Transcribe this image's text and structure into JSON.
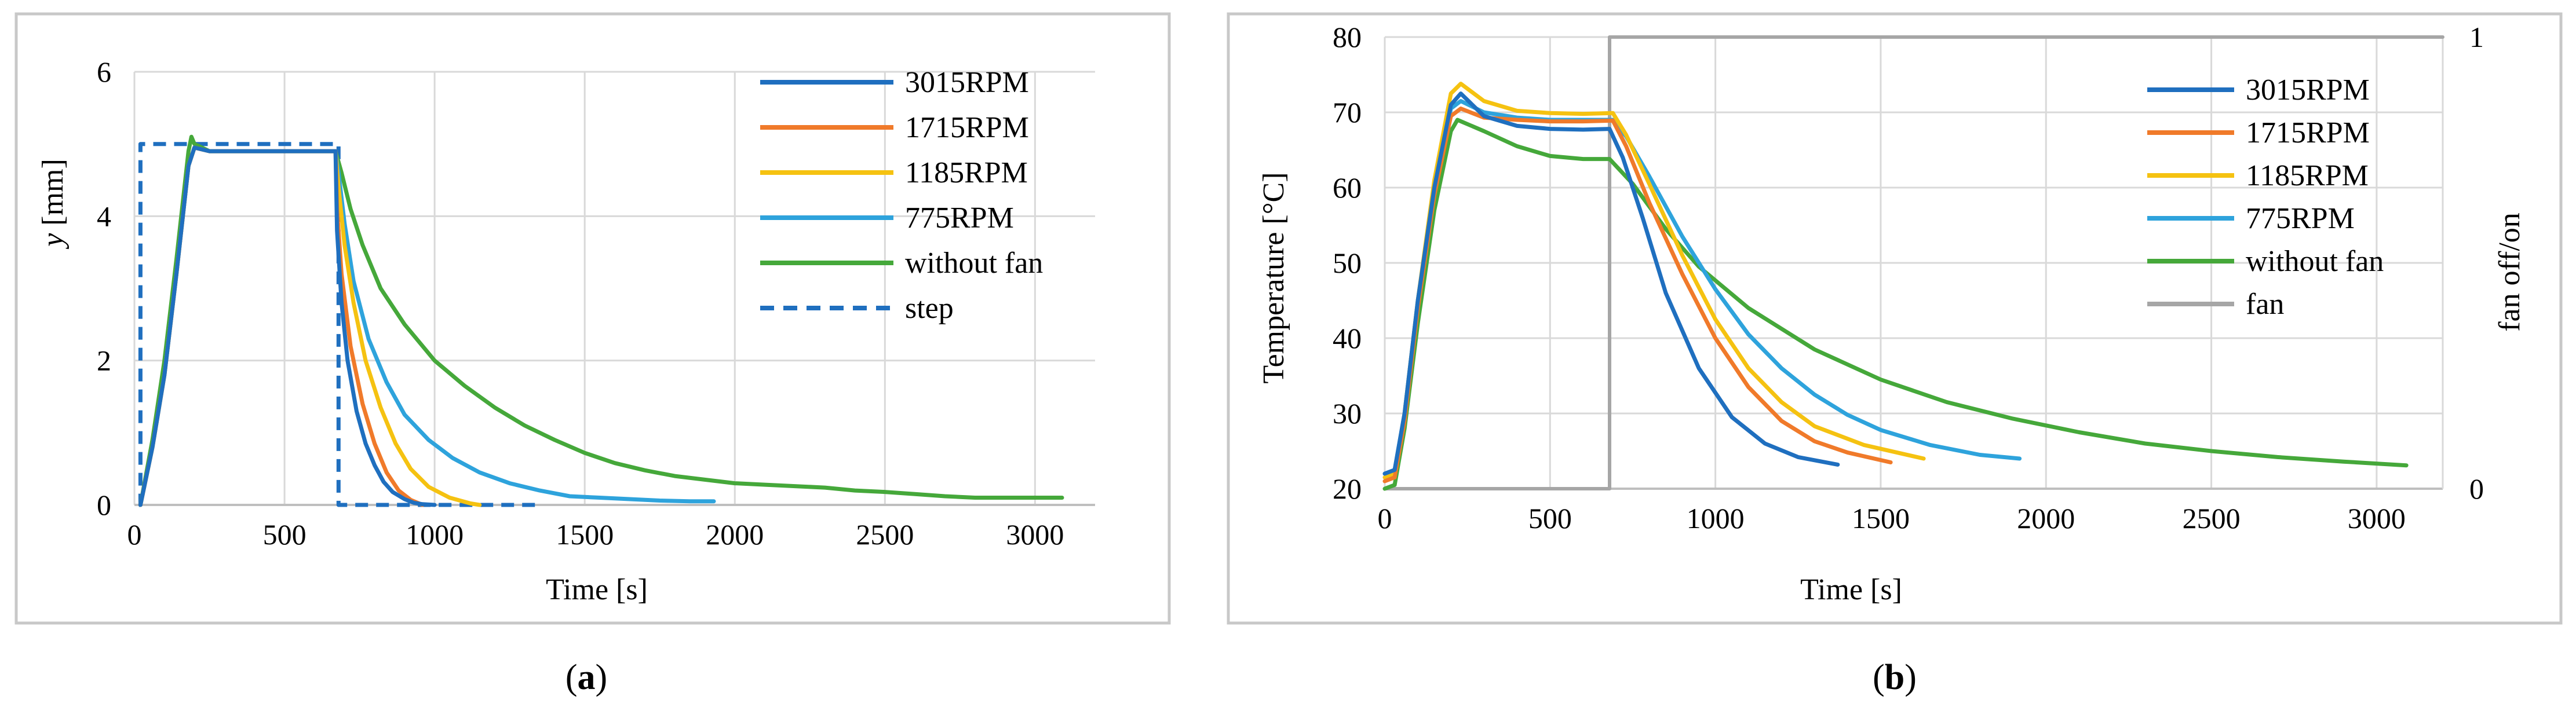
{
  "colors": {
    "c3015": "#1f6fbf",
    "c1715": "#f07a2a",
    "c1185": "#f5c211",
    "c775": "#2ea3dc",
    "without_fan": "#45a83a",
    "step": "#1f6fbf",
    "fan": "#a6a6a6",
    "grid": "#d9d9d9",
    "frame": "#c8c8c8"
  },
  "chart_data": [
    {
      "id": "a",
      "type": "line",
      "caption_letter": "a",
      "xlabel": "Time [s]",
      "ylabel_italic": "y",
      "ylabel_rest": " [mm]",
      "xlim": [
        0,
        3200
      ],
      "ylim": [
        0,
        6
      ],
      "xticks": [
        0,
        500,
        1000,
        1500,
        2000,
        2500,
        3000
      ],
      "yticks": [
        0,
        2,
        4,
        6
      ],
      "grid": true,
      "legend": "top-right",
      "series": [
        {
          "name": "3015RPM",
          "color_key": "c3015",
          "dash": false,
          "x": [
            20,
            60,
            100,
            140,
            180,
            200,
            250,
            400,
            550,
            670,
            675,
            690,
            710,
            740,
            770,
            800,
            830,
            860,
            900,
            930,
            960,
            1000
          ],
          "y": [
            0,
            0.8,
            1.8,
            3.2,
            4.7,
            4.95,
            4.9,
            4.9,
            4.9,
            4.9,
            3.8,
            2.8,
            2.0,
            1.3,
            0.85,
            0.55,
            0.32,
            0.18,
            0.08,
            0.03,
            0.01,
            0
          ]
        },
        {
          "name": "1715RPM",
          "color_key": "c1715",
          "dash": false,
          "x": [
            20,
            60,
            100,
            140,
            180,
            200,
            250,
            400,
            550,
            670,
            675,
            690,
            720,
            760,
            800,
            840,
            880,
            920,
            960
          ],
          "y": [
            0,
            0.8,
            1.8,
            3.2,
            4.7,
            4.95,
            4.9,
            4.9,
            4.9,
            4.9,
            4.1,
            3.2,
            2.2,
            1.4,
            0.85,
            0.45,
            0.2,
            0.07,
            0
          ]
        },
        {
          "name": "1185RPM",
          "color_key": "c1185",
          "dash": false,
          "x": [
            20,
            60,
            100,
            140,
            180,
            200,
            250,
            400,
            550,
            670,
            680,
            700,
            730,
            770,
            820,
            870,
            920,
            980,
            1050,
            1120,
            1150
          ],
          "y": [
            0,
            0.8,
            1.8,
            3.2,
            4.7,
            4.95,
            4.9,
            4.9,
            4.9,
            4.9,
            4.4,
            3.6,
            2.8,
            2.0,
            1.35,
            0.85,
            0.5,
            0.25,
            0.1,
            0.02,
            0
          ]
        },
        {
          "name": "775RPM",
          "color_key": "c775",
          "dash": false,
          "x": [
            20,
            60,
            100,
            140,
            180,
            200,
            250,
            400,
            550,
            670,
            680,
            700,
            730,
            780,
            840,
            900,
            980,
            1060,
            1150,
            1250,
            1350,
            1450,
            1550,
            1650,
            1750,
            1850,
            1930
          ],
          "y": [
            0,
            0.8,
            1.8,
            3.2,
            4.7,
            4.95,
            4.9,
            4.9,
            4.9,
            4.9,
            4.6,
            3.9,
            3.1,
            2.3,
            1.7,
            1.25,
            0.9,
            0.65,
            0.45,
            0.3,
            0.2,
            0.12,
            0.1,
            0.08,
            0.06,
            0.05,
            0.05
          ]
        },
        {
          "name": "without fan",
          "color_key": "without_fan",
          "dash": false,
          "x": [
            20,
            60,
            100,
            140,
            180,
            190,
            200,
            250,
            400,
            550,
            670,
            690,
            720,
            760,
            820,
            900,
            1000,
            1100,
            1200,
            1300,
            1400,
            1500,
            1600,
            1700,
            1800,
            1900,
            2000,
            2100,
            2200,
            2300,
            2400,
            2500,
            2600,
            2700,
            2800,
            2900,
            3000,
            3090
          ],
          "y": [
            0,
            0.9,
            2.0,
            3.4,
            4.9,
            5.1,
            5.0,
            4.9,
            4.9,
            4.9,
            4.9,
            4.6,
            4.1,
            3.6,
            3.0,
            2.5,
            2.0,
            1.65,
            1.35,
            1.1,
            0.9,
            0.72,
            0.58,
            0.48,
            0.4,
            0.35,
            0.3,
            0.28,
            0.26,
            0.24,
            0.2,
            0.18,
            0.15,
            0.12,
            0.1,
            0.1,
            0.1,
            0.1
          ]
        },
        {
          "name": "step",
          "color_key": "step",
          "dash": true,
          "x": [
            15,
            20,
            20,
            680,
            680,
            1350
          ],
          "y": [
            0,
            0,
            5,
            5,
            0,
            0
          ]
        }
      ]
    },
    {
      "id": "b",
      "type": "line",
      "caption_letter": "b",
      "xlabel": "Time [s]",
      "ylabel": "Temperature [°C]",
      "y2label": "fan off/on",
      "xlim": [
        0,
        3200
      ],
      "ylim": [
        20,
        80
      ],
      "y2lim": [
        0,
        1
      ],
      "xticks": [
        0,
        500,
        1000,
        1500,
        2000,
        2500,
        3000
      ],
      "yticks": [
        20,
        30,
        40,
        50,
        60,
        70,
        80
      ],
      "y2ticks": [
        0,
        1
      ],
      "grid": true,
      "legend": "top-right",
      "series": [
        {
          "name": "3015RPM",
          "color_key": "c3015",
          "axis": "y",
          "x": [
            0,
            30,
            60,
            100,
            150,
            200,
            230,
            300,
            400,
            500,
            600,
            680,
            720,
            780,
            850,
            950,
            1050,
            1150,
            1250,
            1370
          ],
          "y": [
            22,
            22.5,
            30,
            45,
            60,
            71,
            72.5,
            69.5,
            68.2,
            67.8,
            67.7,
            67.8,
            64,
            56,
            46,
            36,
            29.5,
            26,
            24.2,
            23.2
          ]
        },
        {
          "name": "1715RPM",
          "color_key": "c1715",
          "axis": "y",
          "x": [
            0,
            30,
            60,
            100,
            150,
            200,
            230,
            300,
            400,
            500,
            600,
            690,
            730,
            800,
            900,
            1000,
            1100,
            1200,
            1300,
            1400,
            1530
          ],
          "y": [
            21,
            21.5,
            29,
            44,
            59,
            69.5,
            70.5,
            69.3,
            69,
            68.8,
            68.8,
            68.9,
            65.5,
            58,
            48.5,
            40,
            33.5,
            29,
            26.3,
            24.8,
            23.5
          ]
        },
        {
          "name": "1185RPM",
          "color_key": "c1185",
          "axis": "y",
          "x": [
            0,
            30,
            60,
            100,
            150,
            200,
            230,
            300,
            400,
            500,
            600,
            690,
            730,
            800,
            900,
            1000,
            1100,
            1200,
            1300,
            1450,
            1630
          ],
          "y": [
            21.5,
            22,
            30,
            45,
            61,
            72.5,
            73.8,
            71.5,
            70.2,
            69.9,
            69.8,
            69.9,
            67,
            60.5,
            51,
            42.5,
            36,
            31.5,
            28.3,
            25.8,
            24
          ]
        },
        {
          "name": "775RPM",
          "color_key": "c775",
          "axis": "y",
          "x": [
            0,
            30,
            60,
            100,
            150,
            200,
            230,
            300,
            400,
            500,
            600,
            690,
            730,
            800,
            900,
            1000,
            1100,
            1200,
            1300,
            1400,
            1500,
            1650,
            1800,
            1920
          ],
          "y": [
            22,
            22.5,
            30,
            45,
            60,
            70.5,
            71.5,
            70,
            69.3,
            69,
            69,
            69,
            66.8,
            61.5,
            53.5,
            46.5,
            40.5,
            36,
            32.5,
            29.8,
            27.8,
            25.8,
            24.5,
            24
          ]
        },
        {
          "name": "without fan",
          "color_key": "without_fan",
          "axis": "y",
          "x": [
            0,
            30,
            60,
            100,
            150,
            200,
            220,
            300,
            400,
            500,
            600,
            680,
            750,
            850,
            950,
            1100,
            1300,
            1500,
            1700,
            1900,
            2100,
            2300,
            2500,
            2700,
            2900,
            3090
          ],
          "y": [
            20,
            20.5,
            28,
            42,
            57,
            67.5,
            69,
            67.5,
            65.5,
            64.2,
            63.8,
            63.8,
            60.5,
            54.5,
            49.5,
            44,
            38.5,
            34.5,
            31.5,
            29.3,
            27.5,
            26,
            25,
            24.2,
            23.6,
            23.1
          ]
        },
        {
          "name": "fan",
          "color_key": "fan",
          "axis": "y2",
          "x": [
            0,
            680,
            680,
            3200
          ],
          "y": [
            0,
            0,
            1,
            1
          ]
        }
      ]
    }
  ]
}
